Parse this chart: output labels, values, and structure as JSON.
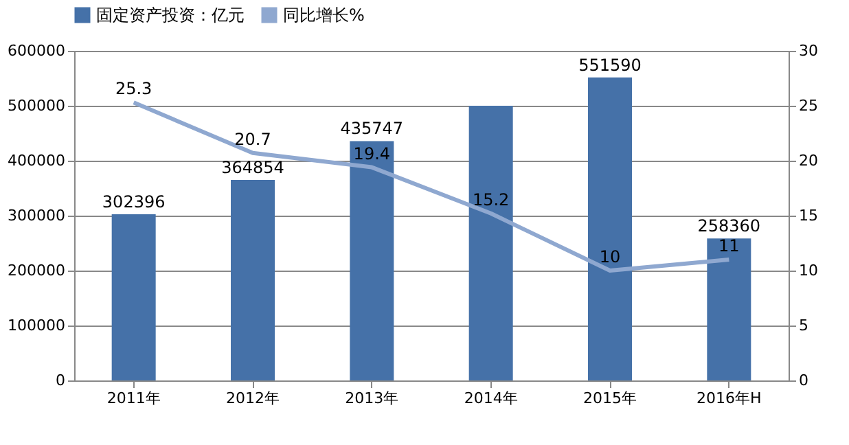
{
  "chart_data": {
    "type": "bar",
    "categories": [
      "2011年",
      "2012年",
      "2013年",
      "2014年",
      "2015年",
      "2016年H"
    ],
    "series": [
      {
        "name": "固定资产投资：亿元",
        "color": "#4571a8",
        "values": [
          302396,
          364854,
          435747,
          500000,
          551590,
          258360
        ],
        "value_labels": [
          "302396",
          "364854",
          "435747",
          null,
          "551590",
          "258360"
        ]
      },
      {
        "name": "同比增长%",
        "type": "line",
        "axis": "y2",
        "color": "#8fa8d0",
        "values": [
          25.3,
          20.7,
          19.4,
          15.2,
          10,
          11
        ],
        "value_labels": [
          "25.3",
          "20.7",
          "19.4",
          "15.2",
          "10",
          "11"
        ]
      }
    ],
    "ylim": [
      0,
      600000
    ],
    "yticks": [
      0,
      100000,
      200000,
      300000,
      400000,
      500000,
      600000
    ],
    "y2lim": [
      0,
      30
    ],
    "y2ticks": [
      0,
      5,
      10,
      15,
      20,
      25,
      30
    ],
    "grid": "y",
    "legend": "top",
    "marker": "none"
  }
}
